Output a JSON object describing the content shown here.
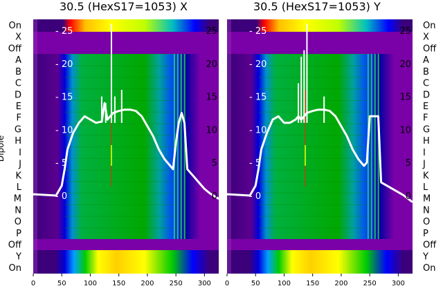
{
  "chart_data": [
    {
      "type": "heatmap",
      "title": "30.5 (HexS17=1053) X",
      "ylabel": "Dipole",
      "x_ticks": [
        0,
        50,
        100,
        150,
        200,
        250,
        300
      ],
      "y_ticks_right": [
        0,
        5,
        10,
        15,
        20,
        25
      ],
      "row_labels": [
        "On",
        "X",
        "Off",
        "A",
        "B",
        "C",
        "D",
        "E",
        "F",
        "G",
        "H",
        "I",
        "J",
        "K",
        "L",
        "M",
        "N",
        "O",
        "P",
        "Off",
        "Y",
        "On"
      ],
      "band_gradient_colors": [
        "#2a0070",
        "#0000ff",
        "#00a0ff",
        "#00cc00",
        "#ffff00",
        "#ff0000"
      ],
      "line_series": {
        "x": [
          0,
          40,
          50,
          55,
          60,
          70,
          80,
          90,
          100,
          110,
          120,
          125,
          130,
          135,
          140,
          150,
          160,
          170,
          180,
          190,
          200,
          210,
          220,
          230,
          240,
          245,
          250,
          255,
          260,
          265,
          270,
          280,
          290,
          300,
          310,
          325
        ],
        "y": [
          0.2,
          0,
          1.5,
          4,
          7,
          9.5,
          11,
          12,
          11.5,
          11,
          11.2,
          14,
          11.5,
          12,
          12.5,
          12.8,
          13,
          13,
          12.8,
          12,
          10.5,
          9,
          7,
          5.5,
          4.5,
          4,
          8,
          11,
          12.5,
          11,
          4,
          3,
          2,
          1,
          0.3,
          -0.5
        ]
      },
      "spikes": [
        [
          120,
          15
        ],
        [
          127,
          14
        ],
        [
          137,
          26
        ],
        [
          143,
          15
        ],
        [
          155,
          16
        ]
      ]
    },
    {
      "type": "heatmap",
      "title": "30.5 (HexS17=1053) Y",
      "x_ticks": [
        0,
        50,
        100,
        150,
        200,
        250,
        300
      ],
      "y_ticks_right": [
        0,
        5,
        10,
        15,
        20,
        25
      ],
      "row_labels": [
        "On",
        "X",
        "Off",
        "A",
        "B",
        "C",
        "D",
        "E",
        "F",
        "G",
        "H",
        "I",
        "J",
        "K",
        "L",
        "M",
        "N",
        "O",
        "P",
        "Off",
        "Y",
        "On"
      ],
      "band_gradient_colors": [
        "#2a0070",
        "#0000ff",
        "#00a0ff",
        "#00cc00",
        "#ffff00",
        "#ff0000"
      ],
      "line_series": {
        "x": [
          0,
          40,
          50,
          55,
          60,
          70,
          80,
          90,
          100,
          110,
          120,
          125,
          130,
          135,
          140,
          150,
          160,
          170,
          180,
          190,
          200,
          210,
          220,
          230,
          240,
          245,
          250,
          255,
          260,
          265,
          270,
          280,
          290,
          300,
          310,
          325
        ],
        "y": [
          0.2,
          0,
          1.5,
          4,
          7,
          9.5,
          11.5,
          12,
          11,
          11,
          11.5,
          12,
          11.5,
          12,
          12.5,
          12.8,
          13,
          13,
          12.8,
          12,
          10.5,
          9,
          7,
          5.5,
          4.5,
          5,
          12,
          12,
          12,
          12,
          2,
          1.5,
          1,
          0.5,
          0,
          -1
        ]
      },
      "spikes": [
        [
          125,
          17
        ],
        [
          130,
          21
        ],
        [
          135,
          22
        ],
        [
          140,
          26
        ],
        [
          170,
          15
        ]
      ]
    }
  ]
}
